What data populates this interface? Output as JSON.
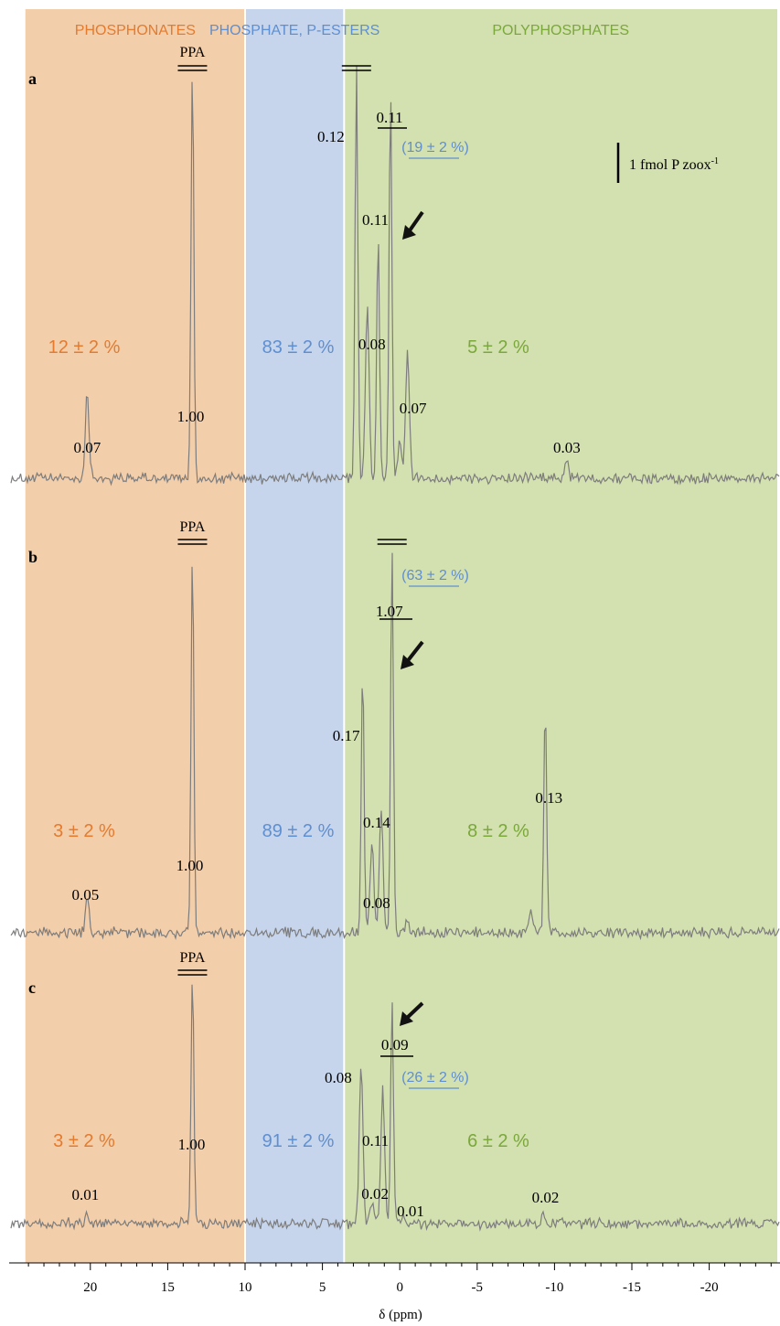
{
  "chart_data": {
    "type": "line",
    "chart_kind": "31P NMR spectra, stacked",
    "xlabel": "δ (ppm)",
    "x_reversed": true,
    "xlim": [
      24.2,
      -24.4
    ],
    "x_ticks": [
      20,
      15,
      10,
      5,
      0,
      -5,
      -10,
      -15,
      -20
    ],
    "x_tick_labels": [
      "20",
      "15",
      "10",
      "5",
      "0",
      "-5",
      "-10",
      "-15",
      "-20"
    ],
    "grid": false,
    "regions": [
      {
        "name": "PHOSPHONATES",
        "from": 24.2,
        "to": 10,
        "color": "#f3ceaa",
        "label_color": "#e47b2e"
      },
      {
        "name": "PHOSPHATE, P-ESTERS",
        "from": 10,
        "to": 3.6,
        "color": "#c6d5ec",
        "label_color": "#5e8fd2"
      },
      {
        "name": "POLYPHOSPHATES",
        "from": 3.6,
        "to": -24.4,
        "color": "#d3e0b0",
        "label_color": "#7aa83a"
      }
    ],
    "scale_bar_label": "1 fmol P zoox",
    "scale_bar_superscript": "-1",
    "reference_label": "PPA",
    "panels": [
      {
        "label": "a",
        "percentages": [
          "12 ± 2 %",
          "83 ± 2 %",
          "5 ± 2 %"
        ],
        "orthophosphate_share": "(19 ± 2 %)",
        "peaks": [
          {
            "ppm": 20.2,
            "height": 95,
            "label": "0.07"
          },
          {
            "ppm": 13.4,
            "height": 450,
            "label": "1.00",
            "off_scale": true
          },
          {
            "ppm": 2.8,
            "height": 450,
            "label": "0.12",
            "off_scale": true
          },
          {
            "ppm": 2.1,
            "height": 185,
            "label": null
          },
          {
            "ppm": 1.4,
            "height": 265,
            "label": "0.11"
          },
          {
            "ppm": 0.6,
            "height": 430,
            "label": "0.11"
          },
          {
            "ppm": 0.0,
            "height": 40,
            "label": null
          },
          {
            "ppm": -0.5,
            "height": 140,
            "label": "0.07"
          },
          {
            "ppm": -10.8,
            "height": 20,
            "label": "0.03"
          }
        ],
        "extra_labels": [
          {
            "ppm": 1.8,
            "text": "0.08"
          }
        ]
      },
      {
        "label": "b",
        "percentages": [
          "3 ± 2 %",
          "89 ± 2 %",
          "8 ± 2 %"
        ],
        "orthophosphate_share": "(63 ± 2 %)",
        "peaks": [
          {
            "ppm": 20.2,
            "height": 42,
            "label": "0.05"
          },
          {
            "ppm": 13.4,
            "height": 420,
            "label": "1.00",
            "off_scale": true
          },
          {
            "ppm": 2.4,
            "height": 290,
            "label": "0.17"
          },
          {
            "ppm": 1.8,
            "height": 100,
            "label": null
          },
          {
            "ppm": 1.2,
            "height": 132,
            "label": "0.14"
          },
          {
            "ppm": 0.5,
            "height": 420,
            "label": "1.07",
            "off_scale": true
          },
          {
            "ppm": -0.5,
            "height": 15,
            "label": null
          },
          {
            "ppm": -8.5,
            "height": 25,
            "label": null
          },
          {
            "ppm": -9.4,
            "height": 250,
            "label": "0.13"
          }
        ],
        "extra_labels": [
          {
            "ppm": 1.5,
            "text": "0.08"
          }
        ]
      },
      {
        "label": "c",
        "percentages": [
          "3 ± 2 %",
          "91 ± 2 %",
          "6 ± 2 %"
        ],
        "orthophosphate_share": "(26 ± 2 %)",
        "peaks": [
          {
            "ppm": 20.2,
            "height": 12,
            "label": "0.01"
          },
          {
            "ppm": 13.4,
            "height": 275,
            "label": "1.00",
            "off_scale": true
          },
          {
            "ppm": 2.5,
            "height": 172,
            "label": "0.08"
          },
          {
            "ppm": 1.8,
            "height": 25,
            "label": null
          },
          {
            "ppm": 1.1,
            "height": 145,
            "label": "0.11"
          },
          {
            "ppm": 0.5,
            "height": 240,
            "label": "0.09"
          },
          {
            "ppm": -0.2,
            "height": 10,
            "label": null
          },
          {
            "ppm": -9.3,
            "height": 12,
            "label": "0.02"
          }
        ],
        "extra_labels": [
          {
            "ppm": 1.6,
            "text": "0.02"
          },
          {
            "ppm": -0.7,
            "text": "0.01"
          }
        ]
      }
    ]
  }
}
